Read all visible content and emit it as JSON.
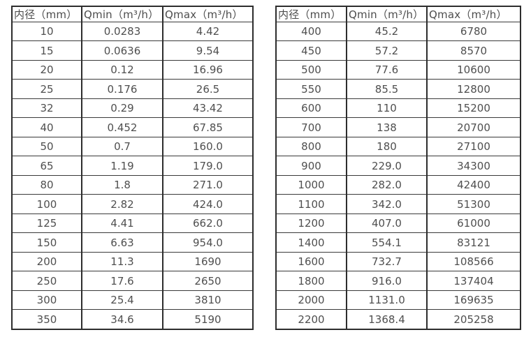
{
  "colors": {
    "background": "#ffffff",
    "border": "#2d2d2d",
    "text": "#4d4d4d"
  },
  "chart_data": [
    {
      "type": "table",
      "title": "",
      "columns": [
        "内径（mm）",
        "Qmin（m³/h）",
        "Qmax（m³/h）"
      ],
      "rows": [
        [
          "10",
          "0.0283",
          "4.42"
        ],
        [
          "15",
          "0.0636",
          "9.54"
        ],
        [
          "20",
          "0.12",
          "16.96"
        ],
        [
          "25",
          "0.176",
          "26.5"
        ],
        [
          "32",
          "0.29",
          "43.42"
        ],
        [
          "40",
          "0.452",
          "67.85"
        ],
        [
          "50",
          "0.7",
          "160.0"
        ],
        [
          "65",
          "1.19",
          "179.0"
        ],
        [
          "80",
          "1.8",
          "271.0"
        ],
        [
          "100",
          "2.82",
          "424.0"
        ],
        [
          "125",
          "4.41",
          "662.0"
        ],
        [
          "150",
          "6.63",
          "954.0"
        ],
        [
          "200",
          "11.3",
          "1690"
        ],
        [
          "250",
          "17.6",
          "2650"
        ],
        [
          "300",
          "25.4",
          "3810"
        ],
        [
          "350",
          "34.6",
          "5190"
        ]
      ]
    },
    {
      "type": "table",
      "title": "",
      "columns": [
        "内径（mm）",
        "Qmin（m³/h）",
        "Qmax（m³/h）"
      ],
      "rows": [
        [
          "400",
          "45.2",
          "6780"
        ],
        [
          "450",
          "57.2",
          "8570"
        ],
        [
          "500",
          "77.6",
          "10600"
        ],
        [
          "550",
          "85.5",
          "12800"
        ],
        [
          "600",
          "110",
          "15200"
        ],
        [
          "700",
          "138",
          "20700"
        ],
        [
          "800",
          "180",
          "27100"
        ],
        [
          "900",
          "229.0",
          "34300"
        ],
        [
          "1000",
          "282.0",
          "42400"
        ],
        [
          "1100",
          "342.0",
          "51300"
        ],
        [
          "1200",
          "407.0",
          "61000"
        ],
        [
          "1400",
          "554.1",
          "83121"
        ],
        [
          "1600",
          "732.7",
          "108566"
        ],
        [
          "1800",
          "916.0",
          "137404"
        ],
        [
          "2000",
          "1131.0",
          "169635"
        ],
        [
          "2200",
          "1368.4",
          "205258"
        ]
      ]
    }
  ]
}
